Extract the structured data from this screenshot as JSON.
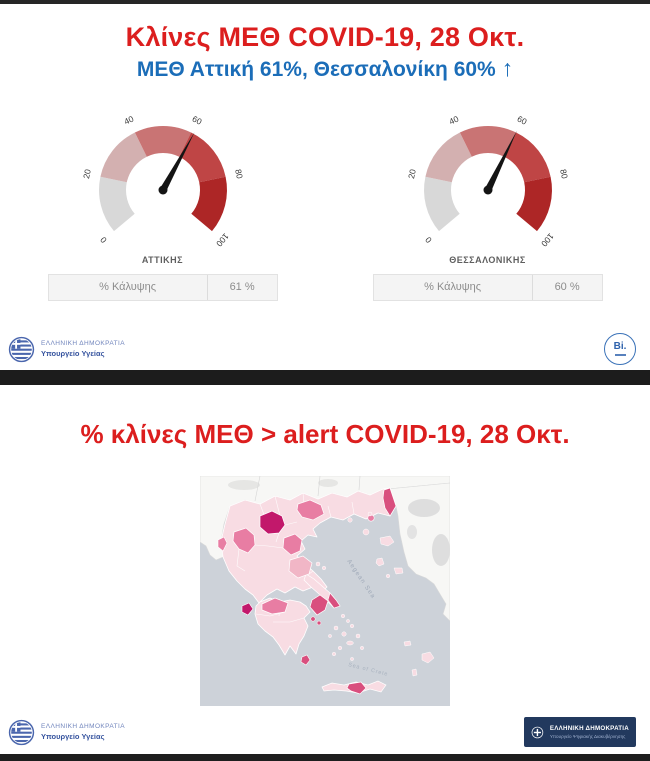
{
  "section1": {
    "title": "Κλίνες ΜΕΘ COVID-19, 28 Οκτ.",
    "subtitle": "ΜΕΘ Αττική 61%, Θεσσαλονίκη 60%",
    "subtitle_arrow": "↑",
    "title_color": "#dc1e1e",
    "subtitle_color": "#1b6db8"
  },
  "footer_health": {
    "line1": "ΕΛΛΗΝΙΚΗ ΔΗΜΟΚΡΑΤΙΑ",
    "line2": "Υπουργείο Υγείας"
  },
  "bi_logo": {
    "label": "Bi."
  },
  "section2": {
    "title": "% κλίνες ΜΕΘ > alert COVID-19, 28 Οκτ.",
    "title_color": "#dc1e1e"
  },
  "footer_digital": {
    "line1": "ΕΛΛΗΝΙΚΗ ΔΗΜΟΚΡΑΤΙΑ",
    "line2": "Υπουργείο Ψηφιακής Διακυβέρνησης"
  },
  "chart_data": [
    {
      "type": "gauge",
      "title": "ΑΤΤΙΚΗΣ",
      "value": 61,
      "min": 0,
      "max": 100,
      "ticks": [
        0,
        20,
        40,
        60,
        80,
        100
      ],
      "segment_colors": [
        "#d8d8d8",
        "#d3b0b0",
        "#c97474",
        "#bf4545",
        "#ad2626"
      ],
      "needle_color": "#141414",
      "table": {
        "label": "% Κάλυψης",
        "value": "61 %"
      }
    },
    {
      "type": "gauge",
      "title": "ΘΕΣΣΑΛΟΝΙΚΗΣ",
      "value": 60,
      "min": 0,
      "max": 100,
      "ticks": [
        0,
        20,
        40,
        60,
        80,
        100
      ],
      "segment_colors": [
        "#d8d8d8",
        "#d3b0b0",
        "#c97474",
        "#bf4545",
        "#ad2626"
      ],
      "needle_color": "#141414",
      "table": {
        "label": "% Κάλυψης",
        "value": "60 %"
      }
    },
    {
      "type": "choropleth-map",
      "title": "% κλίνες ΜΕΘ > alert COVID-19, 28 Οκτ.",
      "sea_labels": [
        "Aegean Sea",
        "Sea of Crete"
      ],
      "palette": {
        "low": "#f8dce3",
        "midlow": "#f1b6c6",
        "mid": "#e87da3",
        "high": "#d94f7e",
        "max": "#c2186b",
        "sea": "#cdd2d9",
        "foreign": "#f7f7f5"
      },
      "regions": [
        {
          "name": "kozani",
          "level": "max"
        },
        {
          "name": "zakynthos",
          "level": "max"
        },
        {
          "name": "attica",
          "level": "high"
        },
        {
          "name": "evros",
          "level": "high"
        },
        {
          "name": "south-evia",
          "level": "high"
        },
        {
          "name": "kythira",
          "level": "high"
        },
        {
          "name": "attica-islands",
          "level": "high"
        },
        {
          "name": "heraklion",
          "level": "high"
        },
        {
          "name": "kerkyra",
          "level": "mid"
        },
        {
          "name": "ioannina",
          "level": "mid"
        },
        {
          "name": "pella",
          "level": "mid"
        },
        {
          "name": "imathia",
          "level": "mid"
        },
        {
          "name": "kavala",
          "level": "mid"
        },
        {
          "name": "achaia",
          "level": "mid"
        },
        {
          "name": "larissa",
          "level": "midlow"
        }
      ]
    }
  ]
}
